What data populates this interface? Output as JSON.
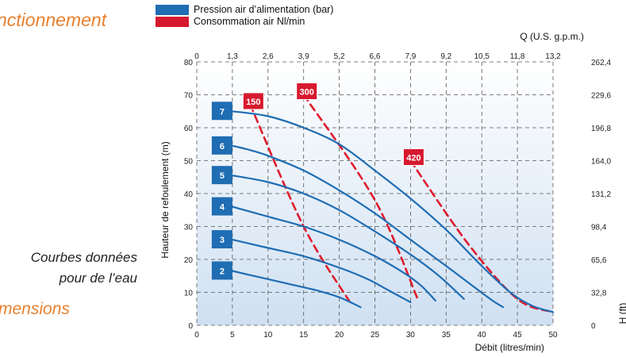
{
  "page": {
    "heading_top": "nctionnement",
    "heading_bottom": "mensions",
    "note_line1": "Courbes données",
    "note_line2": "pour de l’eau"
  },
  "legend": [
    {
      "label": "Pression air d’alimentation (bar)",
      "color": "#1f6db3"
    },
    {
      "label": "Consommation air Nl/min",
      "color": "#d7192f"
    }
  ],
  "colors": {
    "pressure_curve": "#1f6db3",
    "consumption_curve": "#e01b2c",
    "badge_blue": "#1f6db3",
    "badge_red": "#d7192f",
    "plot_bg_top": "#ffffff",
    "plot_bg_bottom": "#cfe0f2"
  },
  "chart_data": {
    "type": "line",
    "xlabel": "Débit (litres/min)",
    "ylabel": "Hauteur de refoulement (m)",
    "x2label": "Q (U.S. g.p.m.)",
    "y2label": "H (ft)",
    "xlim": [
      0,
      50
    ],
    "ylim": [
      0,
      80
    ],
    "x_ticks": [
      "0",
      "5",
      "10",
      "15",
      "20",
      "25",
      "30",
      "35",
      "40",
      "45",
      "50"
    ],
    "y_ticks": [
      "0",
      "10",
      "20",
      "30",
      "40",
      "50",
      "60",
      "70",
      "80"
    ],
    "x2_ticks": [
      "0",
      "1,3",
      "2,6",
      "3,9",
      "5,2",
      "6,6",
      "7,9",
      "9,2",
      "10,5",
      "11,8",
      "13,2"
    ],
    "y2_ticks": [
      "0",
      "32,8",
      "65,6",
      "98,4",
      "131,2",
      "164,0",
      "196,8",
      "229,6",
      "262,4"
    ],
    "grid": true,
    "pressure_series": [
      {
        "name": "2",
        "points": [
          [
            5,
            16.5
          ],
          [
            9,
            14.5
          ],
          [
            13,
            12.5
          ],
          [
            17,
            10.5
          ],
          [
            20,
            8.5
          ],
          [
            23,
            5.5
          ]
        ]
      },
      {
        "name": "3",
        "points": [
          [
            5,
            26
          ],
          [
            10,
            23.5
          ],
          [
            15,
            21
          ],
          [
            20,
            17.5
          ],
          [
            24,
            14
          ],
          [
            27,
            10.5
          ],
          [
            30,
            7
          ]
        ]
      },
      {
        "name": "4",
        "points": [
          [
            5,
            36
          ],
          [
            10,
            33
          ],
          [
            15,
            30
          ],
          [
            20,
            26
          ],
          [
            25,
            21
          ],
          [
            29,
            16
          ],
          [
            31.5,
            12
          ],
          [
            33.5,
            7.5
          ]
        ]
      },
      {
        "name": "5",
        "points": [
          [
            5,
            45.5
          ],
          [
            10,
            43.5
          ],
          [
            15,
            40
          ],
          [
            20,
            35
          ],
          [
            25,
            28.5
          ],
          [
            30,
            21.5
          ],
          [
            34,
            15
          ],
          [
            37.5,
            8
          ]
        ]
      },
      {
        "name": "6",
        "points": [
          [
            5,
            54.5
          ],
          [
            7,
            53.5
          ],
          [
            10,
            51.5
          ],
          [
            15,
            47
          ],
          [
            20,
            41
          ],
          [
            25,
            34
          ],
          [
            30,
            26
          ],
          [
            35,
            18
          ],
          [
            39,
            11.5
          ],
          [
            41.5,
            7.5
          ],
          [
            43,
            5.5
          ]
        ]
      },
      {
        "name": "7",
        "points": [
          [
            5,
            65
          ],
          [
            10,
            63.5
          ],
          [
            15,
            60
          ],
          [
            20,
            55
          ],
          [
            25,
            47
          ],
          [
            30,
            38.5
          ],
          [
            35,
            29
          ],
          [
            40,
            18
          ],
          [
            44,
            10
          ],
          [
            47,
            6
          ],
          [
            50,
            4
          ]
        ]
      }
    ],
    "consumption_series": [
      {
        "name": "150",
        "points": [
          [
            7.5,
            67
          ],
          [
            15,
            30
          ],
          [
            21.5,
            7
          ]
        ]
      },
      {
        "name": "300",
        "points": [
          [
            15,
            70
          ],
          [
            25,
            38
          ],
          [
            31,
            8
          ]
        ]
      },
      {
        "name": "420",
        "points": [
          [
            30,
            50
          ],
          [
            38,
            25
          ],
          [
            45,
            8
          ],
          [
            50,
            4
          ]
        ]
      }
    ]
  }
}
